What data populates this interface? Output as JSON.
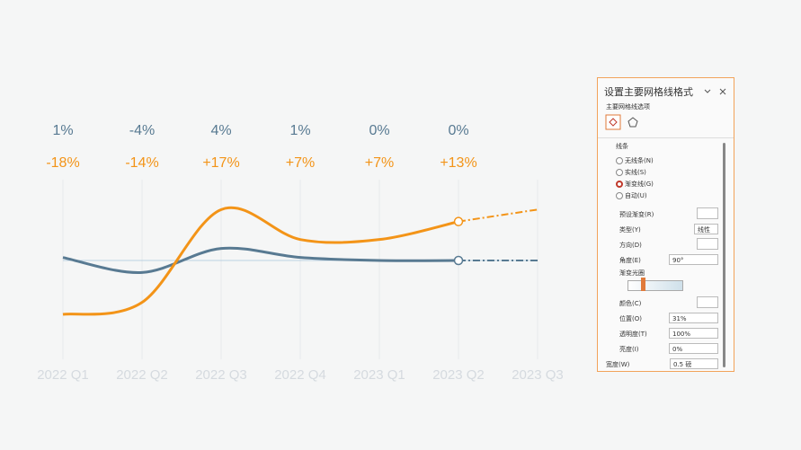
{
  "chart_data": {
    "type": "line",
    "categories": [
      "2022 Q1",
      "2022 Q2",
      "2022 Q3",
      "2022 Q4",
      "2023 Q1",
      "2023 Q2",
      "2023 Q3"
    ],
    "series": [
      {
        "name": null,
        "color": "#587a92",
        "values": [
          1,
          -4,
          4,
          1,
          0,
          0,
          0
        ],
        "value_labels": [
          "1%",
          "-4%",
          "4%",
          "1%",
          "0%",
          "0%",
          null
        ]
      },
      {
        "name": null,
        "color": "#f39418",
        "values": [
          -18,
          -14,
          17,
          7,
          7,
          13,
          17
        ],
        "value_labels": [
          "-18%",
          "-14%",
          "+17%",
          "+7%",
          "+7%",
          "+13%",
          null
        ]
      }
    ],
    "ylim": [
      -33,
      27
    ],
    "grid": true
  },
  "panel": {
    "title": "设置主要网格线格式",
    "subtitle": "主要网格线选项",
    "section": "线条",
    "options": [
      "无线条(N)",
      "实线(S)",
      "渐变线(G)",
      "自动(U)"
    ],
    "fields": [
      {
        "label": "预设渐变(R)",
        "value": null
      },
      {
        "label": "类型(Y)",
        "value": "线性"
      },
      {
        "label": "方向(D)",
        "value": null
      },
      {
        "label": "角度(E)",
        "value": "90°"
      },
      {
        "label": "渐变光圈",
        "value": null
      },
      {
        "label": "颜色(C)",
        "value": null
      },
      {
        "label": "位置(O)",
        "value": "31%"
      },
      {
        "label": "透明度(T)",
        "value": "100%"
      },
      {
        "label": "亮度(I)",
        "value": "0%"
      },
      {
        "label": "宽度(W)",
        "value": "0.5 磅"
      }
    ]
  }
}
